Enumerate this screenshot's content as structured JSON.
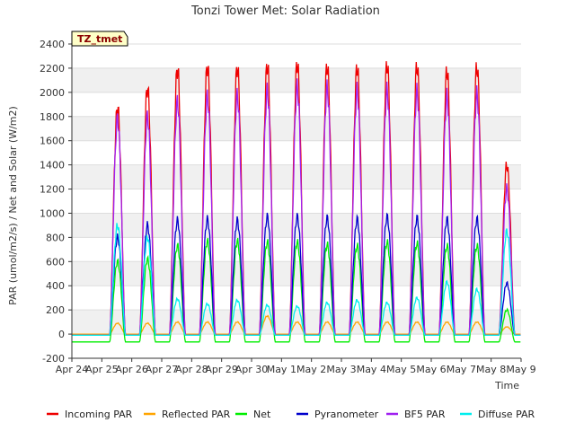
{
  "chart_data": {
    "type": "line",
    "title": "Tonzi Tower Met: Solar Radiation",
    "xlabel": "Time",
    "ylabel": "PAR (umol/m2/s) / Net and Solar (W/m2)",
    "ylim": [
      -200,
      2400
    ],
    "yticks": [
      -200,
      0,
      200,
      400,
      600,
      800,
      1000,
      1200,
      1400,
      1600,
      1800,
      2000,
      2200,
      2400
    ],
    "xlim": [
      "Apr 24",
      "May 9"
    ],
    "xticks": [
      "Apr 24",
      "Apr 25",
      "Apr 26",
      "Apr 27",
      "Apr 28",
      "Apr 29",
      "Apr 30",
      "May 1",
      "May 2",
      "May 3",
      "May 4",
      "May 5",
      "May 6",
      "May 7",
      "May 8",
      "May 9"
    ],
    "days": [
      "Apr 25",
      "Apr 26",
      "Apr 27",
      "Apr 28",
      "Apr 29",
      "Apr 30",
      "May 1",
      "May 2",
      "May 3",
      "May 4",
      "May 5",
      "May 6",
      "May 7",
      "May 8"
    ],
    "annotation": "TZ_tmet",
    "legend_position": "bottom",
    "series": [
      {
        "name": "Incoming PAR",
        "color": "#ee0000",
        "night": -10,
        "daily_peak": [
          1880,
          2040,
          2200,
          2220,
          2210,
          2230,
          2240,
          2220,
          2210,
          2230,
          2220,
          2180,
          2210,
          1400
        ]
      },
      {
        "name": "Reflected PAR",
        "color": "#ffa500",
        "night": 0,
        "daily_peak": [
          90,
          90,
          100,
          100,
          100,
          150,
          100,
          100,
          100,
          100,
          100,
          100,
          100,
          60
        ]
      },
      {
        "name": "Net",
        "color": "#00ee00",
        "night": -65,
        "daily_peak": [
          600,
          620,
          730,
          770,
          770,
          760,
          760,
          740,
          730,
          760,
          750,
          730,
          730,
          200
        ]
      },
      {
        "name": "Pyranometer",
        "color": "#0000cc",
        "night": -10,
        "daily_peak": [
          800,
          900,
          940,
          950,
          940,
          970,
          970,
          960,
          950,
          970,
          960,
          950,
          950,
          420
        ]
      },
      {
        "name": "BF5 PAR",
        "color": "#a020f0",
        "night": -10,
        "daily_peak": [
          1780,
          1800,
          1920,
          1960,
          1970,
          2010,
          2040,
          2030,
          2010,
          2010,
          2000,
          1960,
          1980,
          1200
        ]
      },
      {
        "name": "Diffuse PAR",
        "color": "#00eeee",
        "night": -10,
        "daily_peak": [
          900,
          800,
          290,
          250,
          280,
          240,
          230,
          260,
          280,
          260,
          300,
          430,
          370,
          850
        ]
      }
    ]
  }
}
